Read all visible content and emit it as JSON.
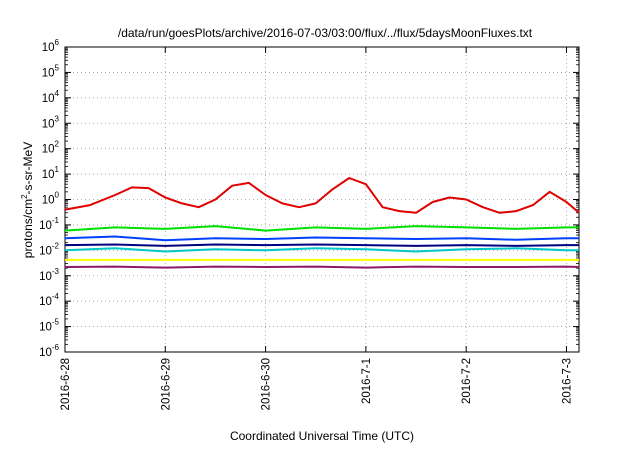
{
  "chart_data": {
    "type": "line",
    "title": "/data/run/goesPlots/archive/2016-07-03/03:00/flux/../flux/5daysMoonFluxes.txt",
    "xlabel": "Coordinated Universal Time (UTC)",
    "ylabel": {
      "parts": [
        "protons/cm",
        "2",
        "-s-sr-MeV"
      ]
    },
    "yscale": "log",
    "ylim": [
      1e-06,
      1000000.0
    ],
    "y_ticks": [
      {
        "base": "10",
        "exp": "-6",
        "value": 1e-06
      },
      {
        "base": "10",
        "exp": "-5",
        "value": 1e-05
      },
      {
        "base": "10",
        "exp": "-4",
        "value": 0.0001
      },
      {
        "base": "10",
        "exp": "-3",
        "value": 0.001
      },
      {
        "base": "10",
        "exp": "-2",
        "value": 0.01
      },
      {
        "base": "10",
        "exp": "-1",
        "value": 0.1
      },
      {
        "base": "10",
        "exp": "0",
        "value": 1
      },
      {
        "base": "10",
        "exp": "1",
        "value": 10
      },
      {
        "base": "10",
        "exp": "2",
        "value": 100
      },
      {
        "base": "10",
        "exp": "3",
        "value": 1000
      },
      {
        "base": "10",
        "exp": "4",
        "value": 10000
      },
      {
        "base": "10",
        "exp": "5",
        "value": 100000
      },
      {
        "base": "10",
        "exp": "6",
        "value": 1000000
      }
    ],
    "x_unit": "days",
    "x_date_range": [
      "2016-06-28 00:00",
      "2016-07-03 03:00"
    ],
    "x_ticks": [
      {
        "label": "2016-6-28",
        "date": "2016-06-28"
      },
      {
        "label": "2016-6-29",
        "date": "2016-06-29"
      },
      {
        "label": "2016-6-30",
        "date": "2016-06-30"
      },
      {
        "label": "2016-7-1",
        "date": "2016-07-01"
      },
      {
        "label": "2016-7-2",
        "date": "2016-07-02"
      },
      {
        "label": "2016-7-3",
        "date": "2016-07-03"
      }
    ],
    "grid": true,
    "series": [
      {
        "color": "#e00000",
        "x": [
          "2016-06-28 00:00",
          "2016-06-28 06:00",
          "2016-06-28 12:00",
          "2016-06-28 16:00",
          "2016-06-28 20:00",
          "2016-06-29 00:00",
          "2016-06-29 04:00",
          "2016-06-29 08:00",
          "2016-06-29 12:00",
          "2016-06-29 16:00",
          "2016-06-29 20:00",
          "2016-06-30 00:00",
          "2016-06-30 04:00",
          "2016-06-30 08:00",
          "2016-06-30 12:00",
          "2016-06-30 16:00",
          "2016-06-30 20:00",
          "2016-07-01 00:00",
          "2016-07-01 04:00",
          "2016-07-01 08:00",
          "2016-07-01 12:00",
          "2016-07-01 16:00",
          "2016-07-01 20:00",
          "2016-07-02 00:00",
          "2016-07-02 04:00",
          "2016-07-02 08:00",
          "2016-07-02 12:00",
          "2016-07-02 16:00",
          "2016-07-02 20:00",
          "2016-07-03 00:00",
          "2016-07-03 03:00"
        ],
        "values": [
          0.4,
          0.6,
          1.5,
          3.0,
          2.8,
          1.2,
          0.7,
          0.5,
          1.0,
          3.5,
          4.5,
          1.5,
          0.7,
          0.5,
          0.7,
          2.5,
          7.0,
          4.0,
          0.5,
          0.35,
          0.3,
          0.8,
          1.2,
          1.0,
          0.5,
          0.3,
          0.35,
          0.6,
          2.0,
          0.8,
          0.3
        ]
      },
      {
        "color": "#00e000",
        "x": [
          "2016-06-28 00:00",
          "2016-06-28 12:00",
          "2016-06-29 00:00",
          "2016-06-29 12:00",
          "2016-06-30 00:00",
          "2016-06-30 12:00",
          "2016-07-01 00:00",
          "2016-07-01 12:00",
          "2016-07-02 00:00",
          "2016-07-02 12:00",
          "2016-07-03 00:00",
          "2016-07-03 03:00"
        ],
        "values": [
          0.06,
          0.08,
          0.07,
          0.09,
          0.06,
          0.08,
          0.07,
          0.09,
          0.08,
          0.07,
          0.08,
          0.08
        ]
      },
      {
        "color": "#00c8c8",
        "x": [
          "2016-06-28 00:00",
          "2016-06-28 12:00",
          "2016-06-29 00:00",
          "2016-06-29 12:00",
          "2016-06-30 00:00",
          "2016-06-30 12:00",
          "2016-07-01 00:00",
          "2016-07-01 12:00",
          "2016-07-02 00:00",
          "2016-07-02 12:00",
          "2016-07-03 00:00",
          "2016-07-03 03:00"
        ],
        "values": [
          0.01,
          0.012,
          0.009,
          0.011,
          0.01,
          0.012,
          0.011,
          0.009,
          0.011,
          0.012,
          0.01,
          0.01
        ]
      },
      {
        "color": "#0040ff",
        "x": [
          "2016-06-28 00:00",
          "2016-06-28 12:00",
          "2016-06-29 00:00",
          "2016-06-29 12:00",
          "2016-06-30 00:00",
          "2016-06-30 12:00",
          "2016-07-01 00:00",
          "2016-07-01 12:00",
          "2016-07-02 00:00",
          "2016-07-02 12:00",
          "2016-07-03 00:00",
          "2016-07-03 03:00"
        ],
        "values": [
          0.03,
          0.035,
          0.025,
          0.03,
          0.028,
          0.032,
          0.03,
          0.028,
          0.03,
          0.026,
          0.03,
          0.03
        ]
      },
      {
        "color": "#000080",
        "x": [
          "2016-06-28 00:00",
          "2016-06-28 12:00",
          "2016-06-29 00:00",
          "2016-06-29 12:00",
          "2016-06-30 00:00",
          "2016-06-30 12:00",
          "2016-07-01 00:00",
          "2016-07-01 12:00",
          "2016-07-02 00:00",
          "2016-07-02 12:00",
          "2016-07-03 00:00",
          "2016-07-03 03:00"
        ],
        "values": [
          0.016,
          0.017,
          0.015,
          0.017,
          0.016,
          0.017,
          0.016,
          0.015,
          0.016,
          0.015,
          0.016,
          0.016
        ]
      },
      {
        "color": "#ffff00",
        "x": [
          "2016-06-28 00:00",
          "2016-07-03 03:00"
        ],
        "values": [
          0.0042,
          0.0042
        ]
      },
      {
        "color": "#8b1a6b",
        "x": [
          "2016-06-28 00:00",
          "2016-06-28 12:00",
          "2016-06-29 00:00",
          "2016-06-29 12:00",
          "2016-06-30 00:00",
          "2016-06-30 12:00",
          "2016-07-01 00:00",
          "2016-07-01 12:00",
          "2016-07-02 00:00",
          "2016-07-02 12:00",
          "2016-07-03 00:00",
          "2016-07-03 03:00"
        ],
        "values": [
          0.0022,
          0.0023,
          0.0021,
          0.0023,
          0.0022,
          0.0023,
          0.0021,
          0.0023,
          0.0022,
          0.0022,
          0.0023,
          0.0022
        ]
      }
    ]
  }
}
